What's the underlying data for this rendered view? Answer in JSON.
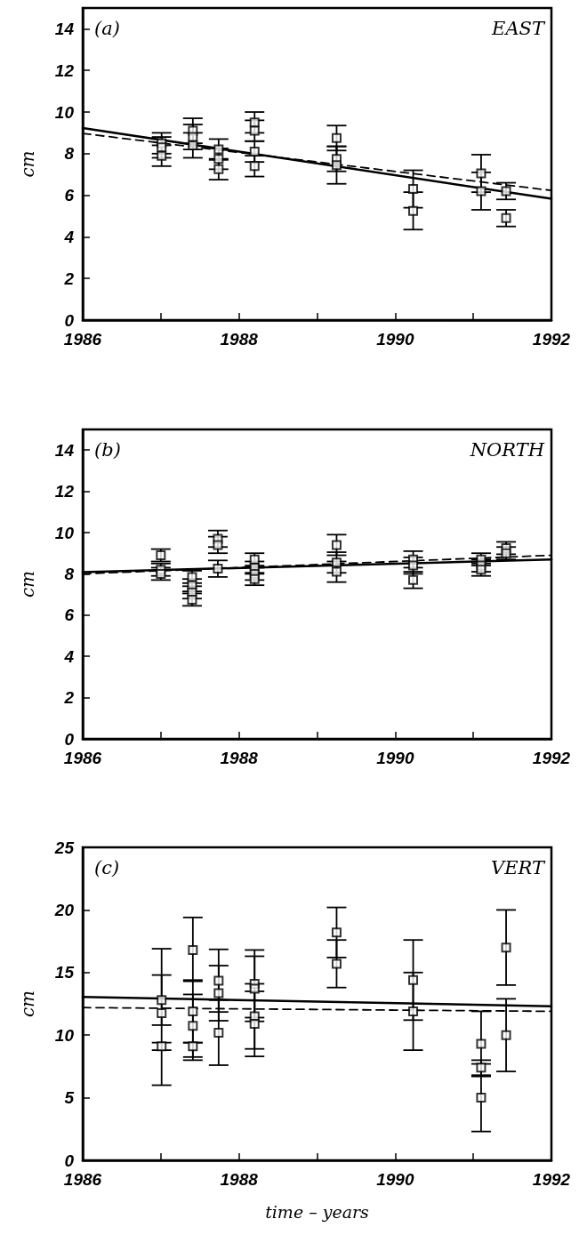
{
  "chart_data": [
    {
      "type": "scatter",
      "ylabel": "cm",
      "annotations": [
        "(a)",
        "EAST"
      ],
      "xlim": [
        1986,
        1992
      ],
      "xticks": [
        1986,
        {
          "value": 1987,
          "label": null
        },
        1988,
        {
          "value": 1989,
          "label": null
        },
        1990,
        {
          "value": 1991,
          "label": null
        },
        1992
      ],
      "ylim": [
        0,
        15
      ],
      "yticks": [
        0,
        2,
        4,
        6,
        8,
        10,
        12,
        14
      ],
      "grid": false,
      "marker": "square",
      "series": [
        {
          "color": "#000000",
          "x": [
            1987.01,
            1987.01,
            1987.01,
            1987.41,
            1987.41,
            1987.41,
            1987.74,
            1987.74,
            1987.74,
            1988.2,
            1988.2,
            1988.2,
            1988.2,
            1989.25,
            1989.25,
            1989.25,
            1990.23,
            1990.23,
            1991.1,
            1991.1,
            1991.42,
            1991.42
          ],
          "values": [
            8.5,
            8.3,
            7.9,
            9.1,
            8.8,
            8.4,
            8.2,
            7.75,
            7.25,
            9.5,
            9.1,
            8.1,
            7.4,
            8.75,
            7.75,
            7.45,
            6.3,
            5.25,
            7.05,
            6.2,
            6.2,
            4.9
          ],
          "errors": [
            0.5,
            0.5,
            0.5,
            0.6,
            0.6,
            0.6,
            0.5,
            0.5,
            0.5,
            0.5,
            0.5,
            0.5,
            0.5,
            0.6,
            0.6,
            0.9,
            0.9,
            0.9,
            0.9,
            0.9,
            0.4,
            0.4
          ]
        },
        {
          "type": "line",
          "color": "#000000",
          "x": [
            1986,
            1992
          ],
          "values": [
            9.23,
            5.83
          ],
          "line_style": "solid",
          "marker": "none"
        },
        {
          "type": "line",
          "color": "#000000",
          "x": [
            1986,
            1992
          ],
          "values": [
            8.97,
            6.23
          ],
          "line_style": "dashed",
          "marker": "none"
        }
      ]
    },
    {
      "type": "scatter",
      "ylabel": "cm",
      "annotations": [
        "(b)",
        "NORTH"
      ],
      "xlim": [
        1986,
        1992
      ],
      "xticks": [
        1986,
        {
          "value": 1987,
          "label": null
        },
        1988,
        {
          "value": 1989,
          "label": null
        },
        1990,
        {
          "value": 1991,
          "label": null
        },
        1992
      ],
      "ylim": [
        0,
        15
      ],
      "yticks": [
        0,
        2,
        4,
        6,
        8,
        10,
        12,
        14
      ],
      "grid": false,
      "marker": "square",
      "series": [
        {
          "color": "#000000",
          "x": [
            1987.0,
            1987.0,
            1987.0,
            1987.4,
            1987.4,
            1987.4,
            1987.4,
            1987.73,
            1987.73,
            1987.73,
            1988.2,
            1988.2,
            1988.2,
            1988.2,
            1989.25,
            1989.25,
            1989.25,
            1990.23,
            1990.23,
            1990.23,
            1991.1,
            1991.1,
            1991.1,
            1991.42,
            1991.42
          ],
          "values": [
            8.9,
            8.2,
            8.0,
            7.85,
            7.45,
            7.1,
            6.75,
            9.7,
            9.4,
            8.25,
            8.7,
            8.3,
            8.0,
            7.75,
            9.4,
            8.55,
            8.1,
            8.7,
            8.4,
            7.7,
            8.7,
            8.4,
            8.2,
            9.25,
            9.0
          ],
          "errors": [
            0.3,
            0.3,
            0.3,
            0.3,
            0.3,
            0.3,
            0.3,
            0.4,
            0.4,
            0.4,
            0.3,
            0.3,
            0.3,
            0.3,
            0.5,
            0.5,
            0.5,
            0.4,
            0.4,
            0.4,
            0.3,
            0.3,
            0.3,
            0.3,
            0.3
          ]
        },
        {
          "type": "line",
          "color": "#000000",
          "x": [
            1986,
            1992
          ],
          "values": [
            8.08,
            8.7
          ],
          "line_style": "solid",
          "marker": "none"
        },
        {
          "type": "line",
          "color": "#000000",
          "x": [
            1986,
            1992
          ],
          "values": [
            8.0,
            8.9
          ],
          "line_style": "dashed",
          "marker": "none"
        }
      ]
    },
    {
      "type": "scatter",
      "ylabel": "cm",
      "xlabel": "time – years",
      "annotations": [
        "(c)",
        "VERT"
      ],
      "xlim": [
        1986,
        1992
      ],
      "xticks": [
        1986,
        {
          "value": 1987,
          "label": null
        },
        1988,
        {
          "value": 1989,
          "label": null
        },
        1990,
        {
          "value": 1991,
          "label": null
        },
        1992
      ],
      "ylim": [
        0,
        25
      ],
      "yticks": [
        0,
        5,
        10,
        15,
        20,
        25
      ],
      "grid": false,
      "marker": "square",
      "series": [
        {
          "color": "#000000",
          "x": [
            1987.01,
            1987.01,
            1987.01,
            1987.41,
            1987.41,
            1987.41,
            1987.41,
            1987.74,
            1987.74,
            1987.74,
            1988.2,
            1988.2,
            1988.2,
            1988.2,
            1989.25,
            1989.25,
            1990.23,
            1990.23,
            1991.1,
            1991.1,
            1991.1,
            1991.42,
            1991.42
          ],
          "values": [
            12.8,
            11.75,
            9.1,
            16.8,
            11.9,
            10.75,
            9.1,
            14.35,
            13.35,
            10.2,
            14.1,
            13.7,
            11.5,
            10.9,
            18.2,
            15.7,
            14.4,
            11.9,
            9.3,
            7.4,
            5.0,
            17.0,
            10.0
          ],
          "errors": [
            2,
            [
              6.0,
              16.9
            ],
            0.3,
            [
              14.3,
              19.4
            ],
            2.5,
            2.5,
            [
              8.0,
              9.4
            ],
            2.5,
            2.2,
            2.6,
            2.7,
            2.6,
            2.6,
            2.6,
            2,
            1.9,
            3.2,
            3.1,
            2.6,
            0.6,
            2.7,
            3,
            2.9
          ]
        },
        {
          "type": "line",
          "color": "#000000",
          "x": [
            1986,
            1992
          ],
          "values": [
            13.05,
            12.3
          ],
          "line_style": "solid",
          "marker": "none"
        },
        {
          "type": "line",
          "color": "#000000",
          "x": [
            1986,
            1992
          ],
          "values": [
            12.2,
            11.9
          ],
          "line_style": "dashed",
          "marker": "none"
        }
      ]
    }
  ]
}
